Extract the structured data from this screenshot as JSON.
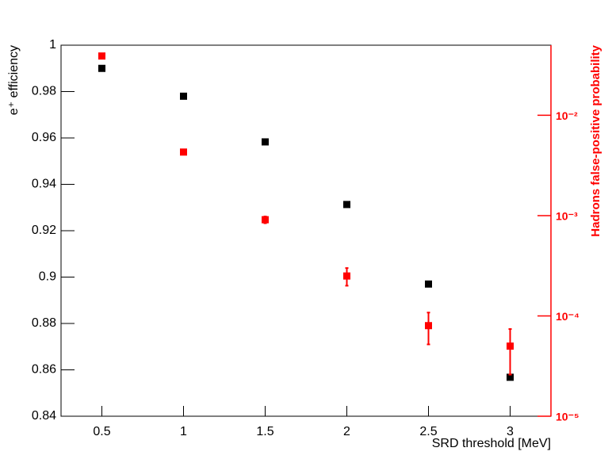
{
  "chart_data": {
    "type": "scatter",
    "x_label": "SRD threshold [MeV]",
    "y_label": "e⁺ efficiency",
    "y2_label": "Hadrons false-positive probability",
    "x": [
      0.5,
      1,
      1.5,
      2,
      2.5,
      3
    ],
    "xlim": [
      0.25,
      3.25
    ],
    "xticks": [
      0.5,
      1,
      1.5,
      2,
      2.5,
      3
    ],
    "ylim": [
      0.84,
      1
    ],
    "yticks": [
      0.84,
      0.86,
      0.88,
      0.9,
      0.92,
      0.94,
      0.96,
      0.98,
      1
    ],
    "y2lim": [
      1e-05,
      0.05
    ],
    "y2log": true,
    "y2ticks": [
      {
        "value": 1e-05,
        "label": "10⁻⁵"
      },
      {
        "value": 0.0001,
        "label": "10⁻⁴"
      },
      {
        "value": 0.001,
        "label": "10⁻³"
      },
      {
        "value": 0.01,
        "label": "10⁻²"
      }
    ],
    "y2color": "#ff0000",
    "series": [
      {
        "color": "#000000",
        "values": [
          0.99,
          0.978,
          0.9583,
          0.9313,
          0.897,
          0.8568
        ]
      },
      {
        "color": "#ff0000",
        "axis": "y2",
        "values": [
          0.039,
          0.0043,
          0.00091,
          0.00025,
          8e-05,
          5e-05
        ],
        "errors": [
          0,
          0,
          7e-05,
          5e-05,
          2.8e-05,
          2.4e-05
        ]
      }
    ]
  }
}
